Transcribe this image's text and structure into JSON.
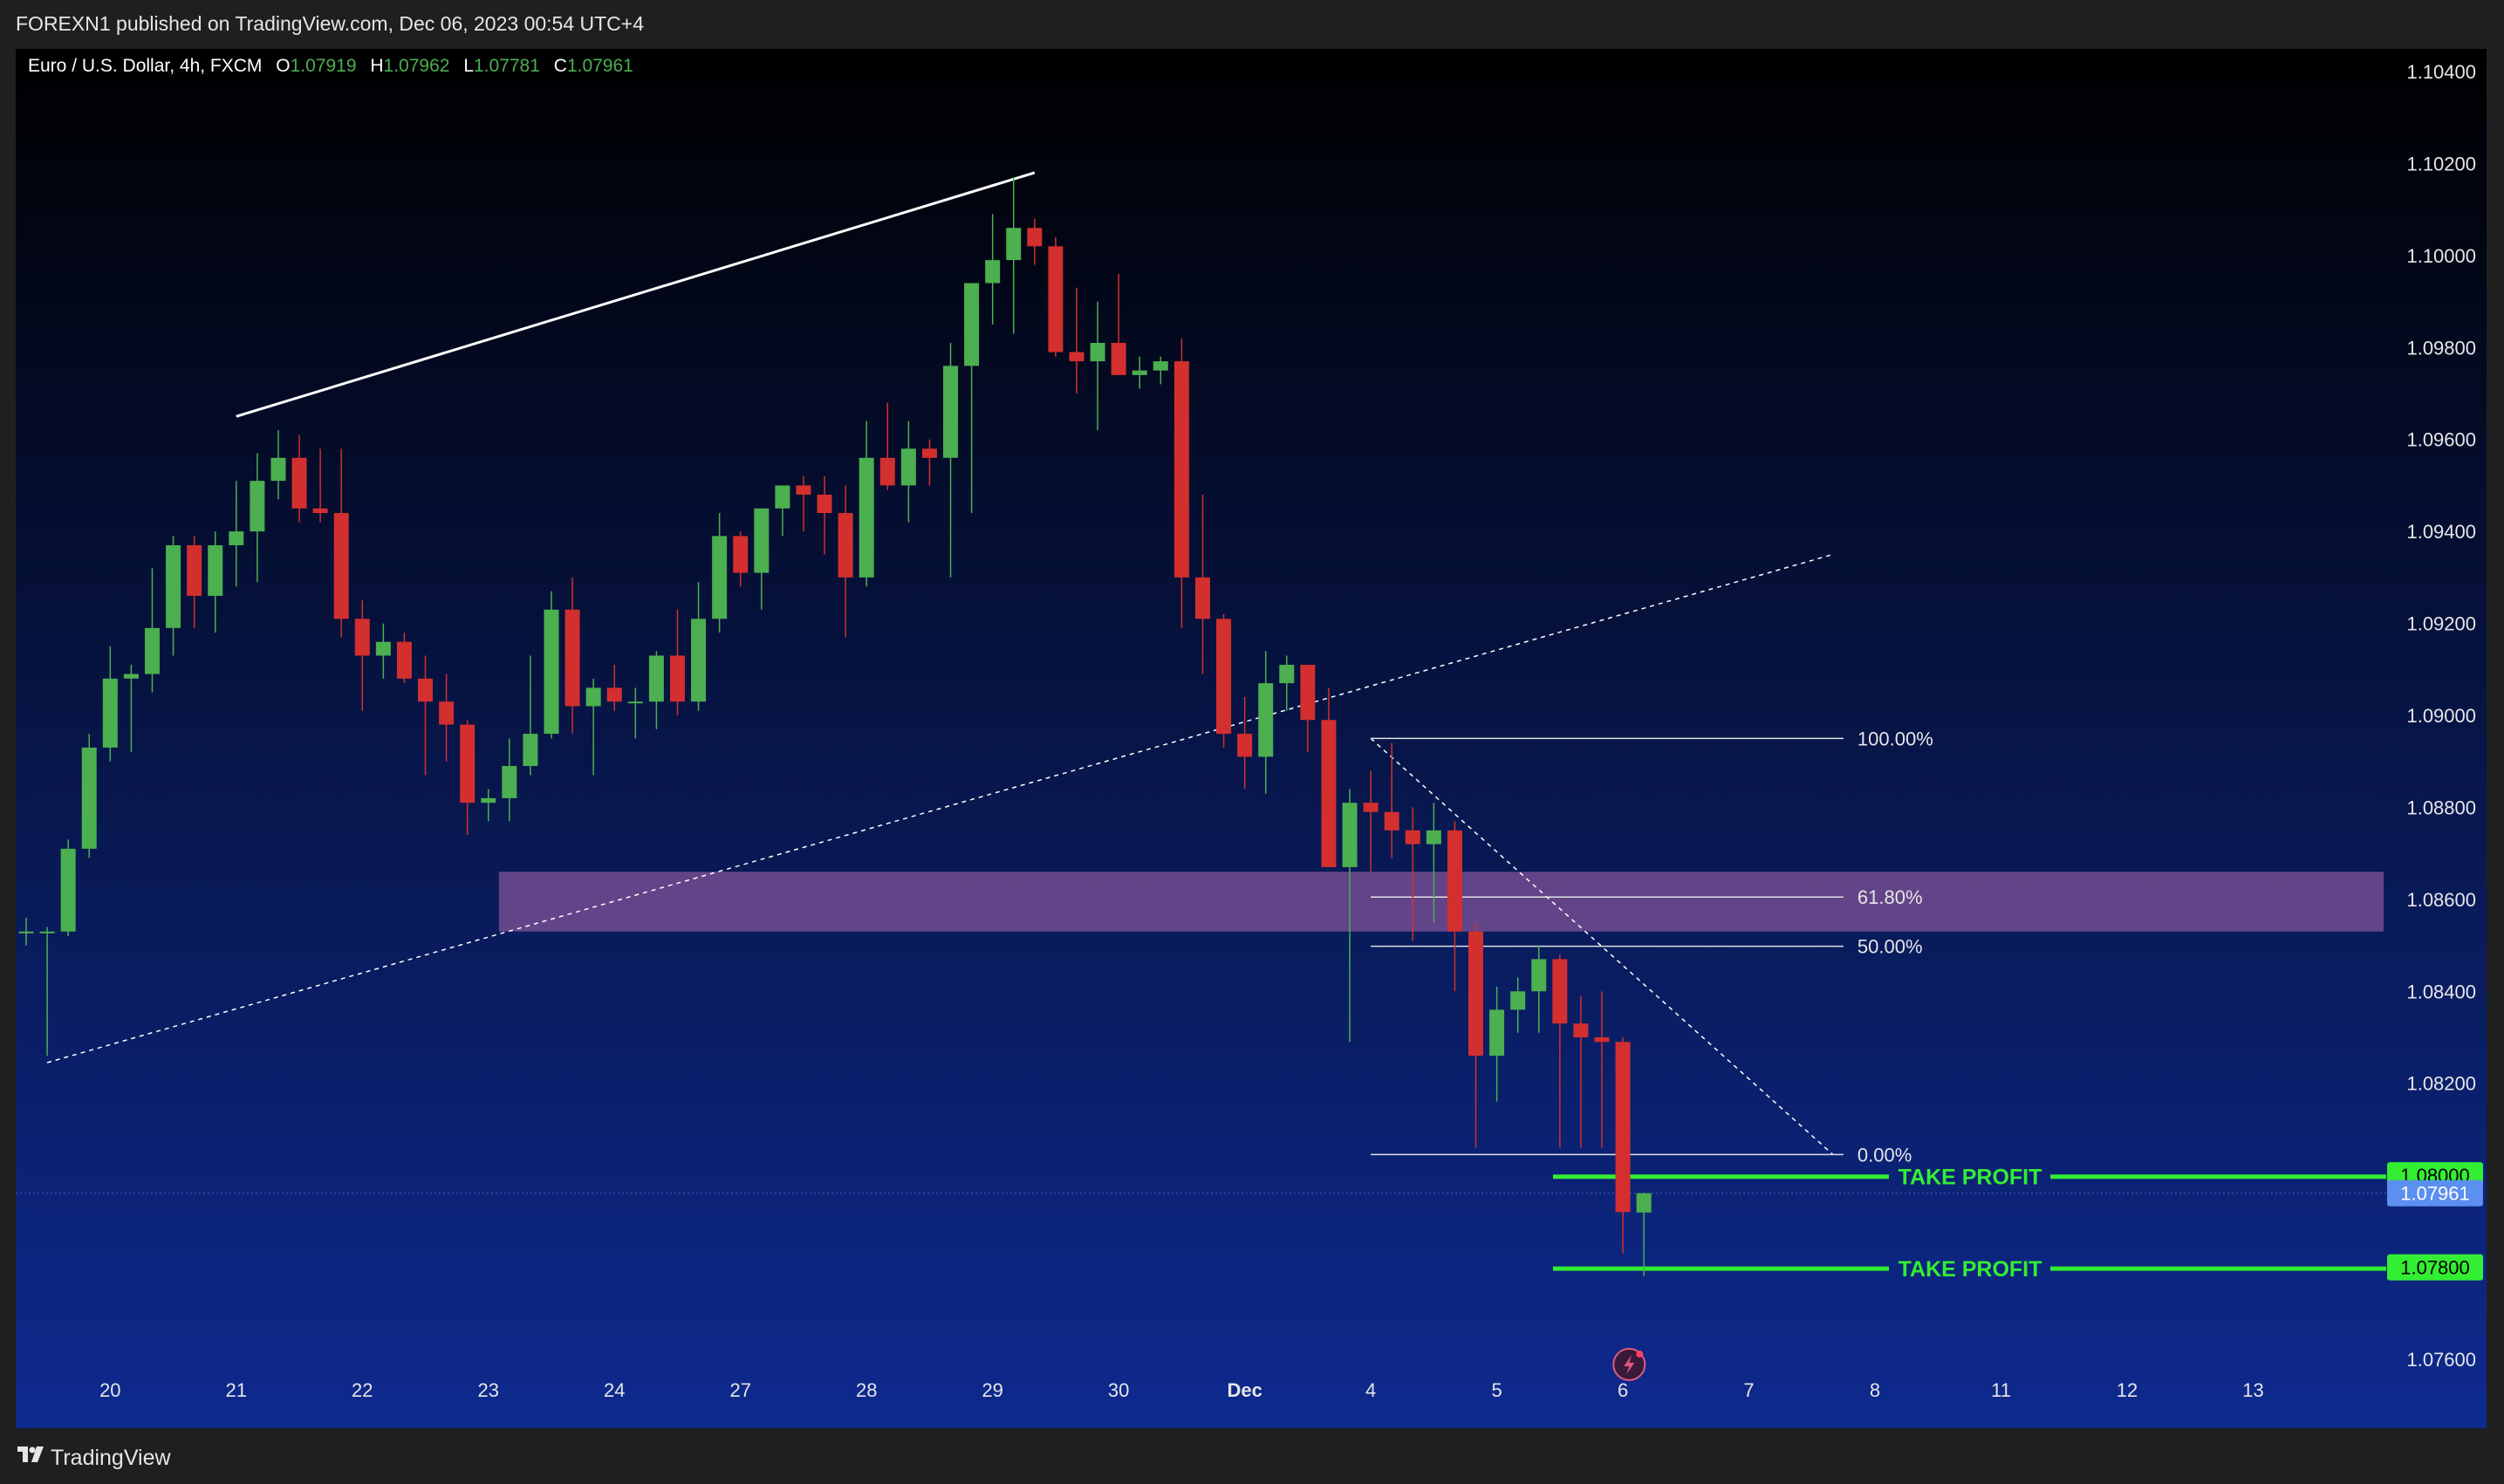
{
  "header": {
    "publish_text": "FOREXN1 published on TradingView.com, Dec 06, 2023 00:54 UTC+4"
  },
  "footer": {
    "brand": "TradingView"
  },
  "legend": {
    "symbol": "Euro / U.S. Dollar, 4h, FXCM",
    "o_label": "O",
    "o_value": "1.07919",
    "h_label": "H",
    "h_value": "1.07962",
    "l_label": "L",
    "l_value": "1.07781",
    "c_label": "C",
    "c_value": "1.07961"
  },
  "colors": {
    "up": "#4caf50",
    "down": "#d32f2f",
    "take_profit": "#33ee33",
    "zone": "#9b5fa6",
    "last_price_badge": "#5b8ff0",
    "bg_top": "#000000",
    "bg_bottom": "#0e2a8f"
  },
  "chart_data": {
    "type": "candlestick",
    "symbol": "Euro / U.S. Dollar",
    "timeframe": "4h",
    "ylim": [
      1.075,
      1.1045
    ],
    "y_ticks": [
      "1.10400",
      "1.10200",
      "1.10000",
      "1.09800",
      "1.09600",
      "1.09400",
      "1.09200",
      "1.09000",
      "1.08800",
      "1.08600",
      "1.08400",
      "1.08200",
      "1.07600"
    ],
    "x_ticks": [
      {
        "label": "20",
        "i": 4
      },
      {
        "label": "21",
        "i": 10
      },
      {
        "label": "22",
        "i": 16
      },
      {
        "label": "23",
        "i": 22
      },
      {
        "label": "24",
        "i": 28
      },
      {
        "label": "27",
        "i": 34
      },
      {
        "label": "28",
        "i": 40
      },
      {
        "label": "29",
        "i": 46
      },
      {
        "label": "30",
        "i": 52
      },
      {
        "label": "Dec",
        "i": 58
      },
      {
        "label": "4",
        "i": 64
      },
      {
        "label": "5",
        "i": 70
      },
      {
        "label": "6",
        "i": 76
      },
      {
        "label": "7",
        "i": 82
      },
      {
        "label": "8",
        "i": 88
      },
      {
        "label": "11",
        "i": 94
      },
      {
        "label": "12",
        "i": 100
      },
      {
        "label": "13",
        "i": 106
      }
    ],
    "candles": [
      [
        1.0853,
        1.0856,
        1.085,
        1.0853
      ],
      [
        1.0853,
        1.0854,
        1.0826,
        1.0853
      ],
      [
        1.0853,
        1.0873,
        1.0852,
        1.0871
      ],
      [
        1.0871,
        1.0896,
        1.0869,
        1.0893
      ],
      [
        1.0893,
        1.0915,
        1.089,
        1.0908
      ],
      [
        1.0908,
        1.0911,
        1.0892,
        1.0909
      ],
      [
        1.0909,
        1.0932,
        1.0905,
        1.0919
      ],
      [
        1.0919,
        1.0939,
        1.0913,
        1.0937
      ],
      [
        1.0937,
        1.0939,
        1.0919,
        1.0926
      ],
      [
        1.0926,
        1.094,
        1.0918,
        1.0937
      ],
      [
        1.0937,
        1.0951,
        1.0928,
        1.094
      ],
      [
        1.094,
        1.0957,
        1.0929,
        1.0951
      ],
      [
        1.0951,
        1.0962,
        1.0947,
        1.0956
      ],
      [
        1.0956,
        1.0961,
        1.0942,
        1.0945
      ],
      [
        1.0945,
        1.0958,
        1.0942,
        1.0944
      ],
      [
        1.0944,
        1.0958,
        1.0917,
        1.0921
      ],
      [
        1.0921,
        1.0925,
        1.0901,
        1.0913
      ],
      [
        1.0913,
        1.092,
        1.0908,
        1.0916
      ],
      [
        1.0916,
        1.0918,
        1.0907,
        1.0908
      ],
      [
        1.0908,
        1.0913,
        1.0887,
        1.0903
      ],
      [
        1.0903,
        1.0909,
        1.089,
        1.0898
      ],
      [
        1.0898,
        1.0899,
        1.0874,
        1.0881
      ],
      [
        1.0881,
        1.0884,
        1.0877,
        1.0882
      ],
      [
        1.0882,
        1.0895,
        1.0877,
        1.0889
      ],
      [
        1.0889,
        1.0913,
        1.0887,
        1.0896
      ],
      [
        1.0896,
        1.0927,
        1.0895,
        1.0923
      ],
      [
        1.0923,
        1.093,
        1.0896,
        1.0902
      ],
      [
        1.0902,
        1.0908,
        1.0887,
        1.0906
      ],
      [
        1.0906,
        1.0911,
        1.0901,
        1.0903
      ],
      [
        1.0903,
        1.0906,
        1.0895,
        1.0903
      ],
      [
        1.0903,
        1.0914,
        1.0897,
        1.0913
      ],
      [
        1.0913,
        1.0923,
        1.09,
        1.0903
      ],
      [
        1.0903,
        1.0929,
        1.0901,
        1.0921
      ],
      [
        1.0921,
        1.0944,
        1.0918,
        1.0939
      ],
      [
        1.0939,
        1.094,
        1.0928,
        1.0931
      ],
      [
        1.0931,
        1.0943,
        1.0923,
        1.0945
      ],
      [
        1.0945,
        1.0949,
        1.0939,
        1.095
      ],
      [
        1.095,
        1.0952,
        1.094,
        1.0948
      ],
      [
        1.0948,
        1.0952,
        1.0935,
        1.0944
      ],
      [
        1.0944,
        1.095,
        1.0917,
        1.093
      ],
      [
        1.093,
        1.0964,
        1.0928,
        1.0956
      ],
      [
        1.0956,
        1.0968,
        1.0949,
        1.095
      ],
      [
        1.095,
        1.0964,
        1.0942,
        1.0958
      ],
      [
        1.0958,
        1.096,
        1.095,
        1.0956
      ],
      [
        1.0956,
        1.0981,
        1.093,
        1.0976
      ],
      [
        1.0976,
        1.0992,
        1.0944,
        1.0994
      ],
      [
        1.0994,
        1.1009,
        1.0985,
        1.0999
      ],
      [
        1.0999,
        1.1017,
        1.0983,
        1.1006
      ],
      [
        1.1006,
        1.1008,
        1.0998,
        1.1002
      ],
      [
        1.1002,
        1.1004,
        1.0978,
        1.0979
      ],
      [
        1.0979,
        1.0993,
        1.097,
        1.0977
      ],
      [
        1.0977,
        1.099,
        1.0962,
        1.0981
      ],
      [
        1.0981,
        1.0996,
        1.0976,
        1.0974
      ],
      [
        1.0974,
        1.0978,
        1.0971,
        1.0975
      ],
      [
        1.0975,
        1.0978,
        1.0972,
        1.0977
      ],
      [
        1.0977,
        1.0982,
        1.0919,
        1.093
      ],
      [
        1.093,
        1.0948,
        1.0909,
        1.0921
      ],
      [
        1.0921,
        1.0922,
        1.0893,
        1.0896
      ],
      [
        1.0896,
        1.0904,
        1.0884,
        1.0891
      ],
      [
        1.0891,
        1.0914,
        1.0883,
        1.0907
      ],
      [
        1.0907,
        1.0913,
        1.0901,
        1.0911
      ],
      [
        1.0911,
        1.0911,
        1.0892,
        1.0899
      ],
      [
        1.0899,
        1.0906,
        1.0867,
        1.0867
      ],
      [
        1.0867,
        1.0884,
        1.0829,
        1.0881
      ],
      [
        1.0881,
        1.0888,
        1.0866,
        1.0879
      ],
      [
        1.0879,
        1.0894,
        1.0869,
        1.0875
      ],
      [
        1.0875,
        1.088,
        1.0851,
        1.0872
      ],
      [
        1.0872,
        1.0881,
        1.0855,
        1.0875
      ],
      [
        1.0875,
        1.0877,
        1.084,
        1.0853
      ],
      [
        1.0853,
        1.0855,
        1.0806,
        1.0826
      ],
      [
        1.0826,
        1.0841,
        1.0816,
        1.0836
      ],
      [
        1.0836,
        1.0843,
        1.0831,
        1.084
      ],
      [
        1.084,
        1.085,
        1.0831,
        1.0847
      ],
      [
        1.0847,
        1.0848,
        1.0806,
        1.0833
      ],
      [
        1.0833,
        1.0839,
        1.0806,
        1.083
      ],
      [
        1.083,
        1.084,
        1.0806,
        1.0829
      ],
      [
        1.0829,
        1.083,
        1.0783,
        1.0792
      ],
      [
        1.07919,
        1.07962,
        1.07781,
        1.07961
      ]
    ],
    "price_levels": [
      {
        "label": "1.08000",
        "value": 1.08
      },
      {
        "label": "1.07961",
        "value": 1.07961
      },
      {
        "label": "1.07800",
        "value": 1.078
      }
    ],
    "fibonacci": {
      "high": 1.0895,
      "low": 1.08045,
      "levels": [
        {
          "label": "100.00%",
          "value": 1.0895
        },
        {
          "label": "61.80%",
          "value": 1.08605
        },
        {
          "label": "50.00%",
          "value": 1.08498
        },
        {
          "label": "0.00%",
          "value": 1.08045
        }
      ]
    },
    "zone": {
      "top": 1.0866,
      "bottom": 1.0853
    },
    "take_profit": [
      {
        "label": "TAKE PROFIT",
        "value": 1.07997
      },
      {
        "label": "TAKE PROFIT",
        "value": 1.07797
      }
    ],
    "trendlines": {
      "solid": [
        [
          10,
          1.0965
        ],
        [
          48,
          1.1018
        ]
      ],
      "dotted_support": [
        [
          1,
          1.08245
        ],
        [
          86,
          1.0935
        ]
      ],
      "fib_diagonal": [
        [
          64,
          1.0895
        ],
        [
          86,
          1.08045
        ]
      ]
    }
  }
}
